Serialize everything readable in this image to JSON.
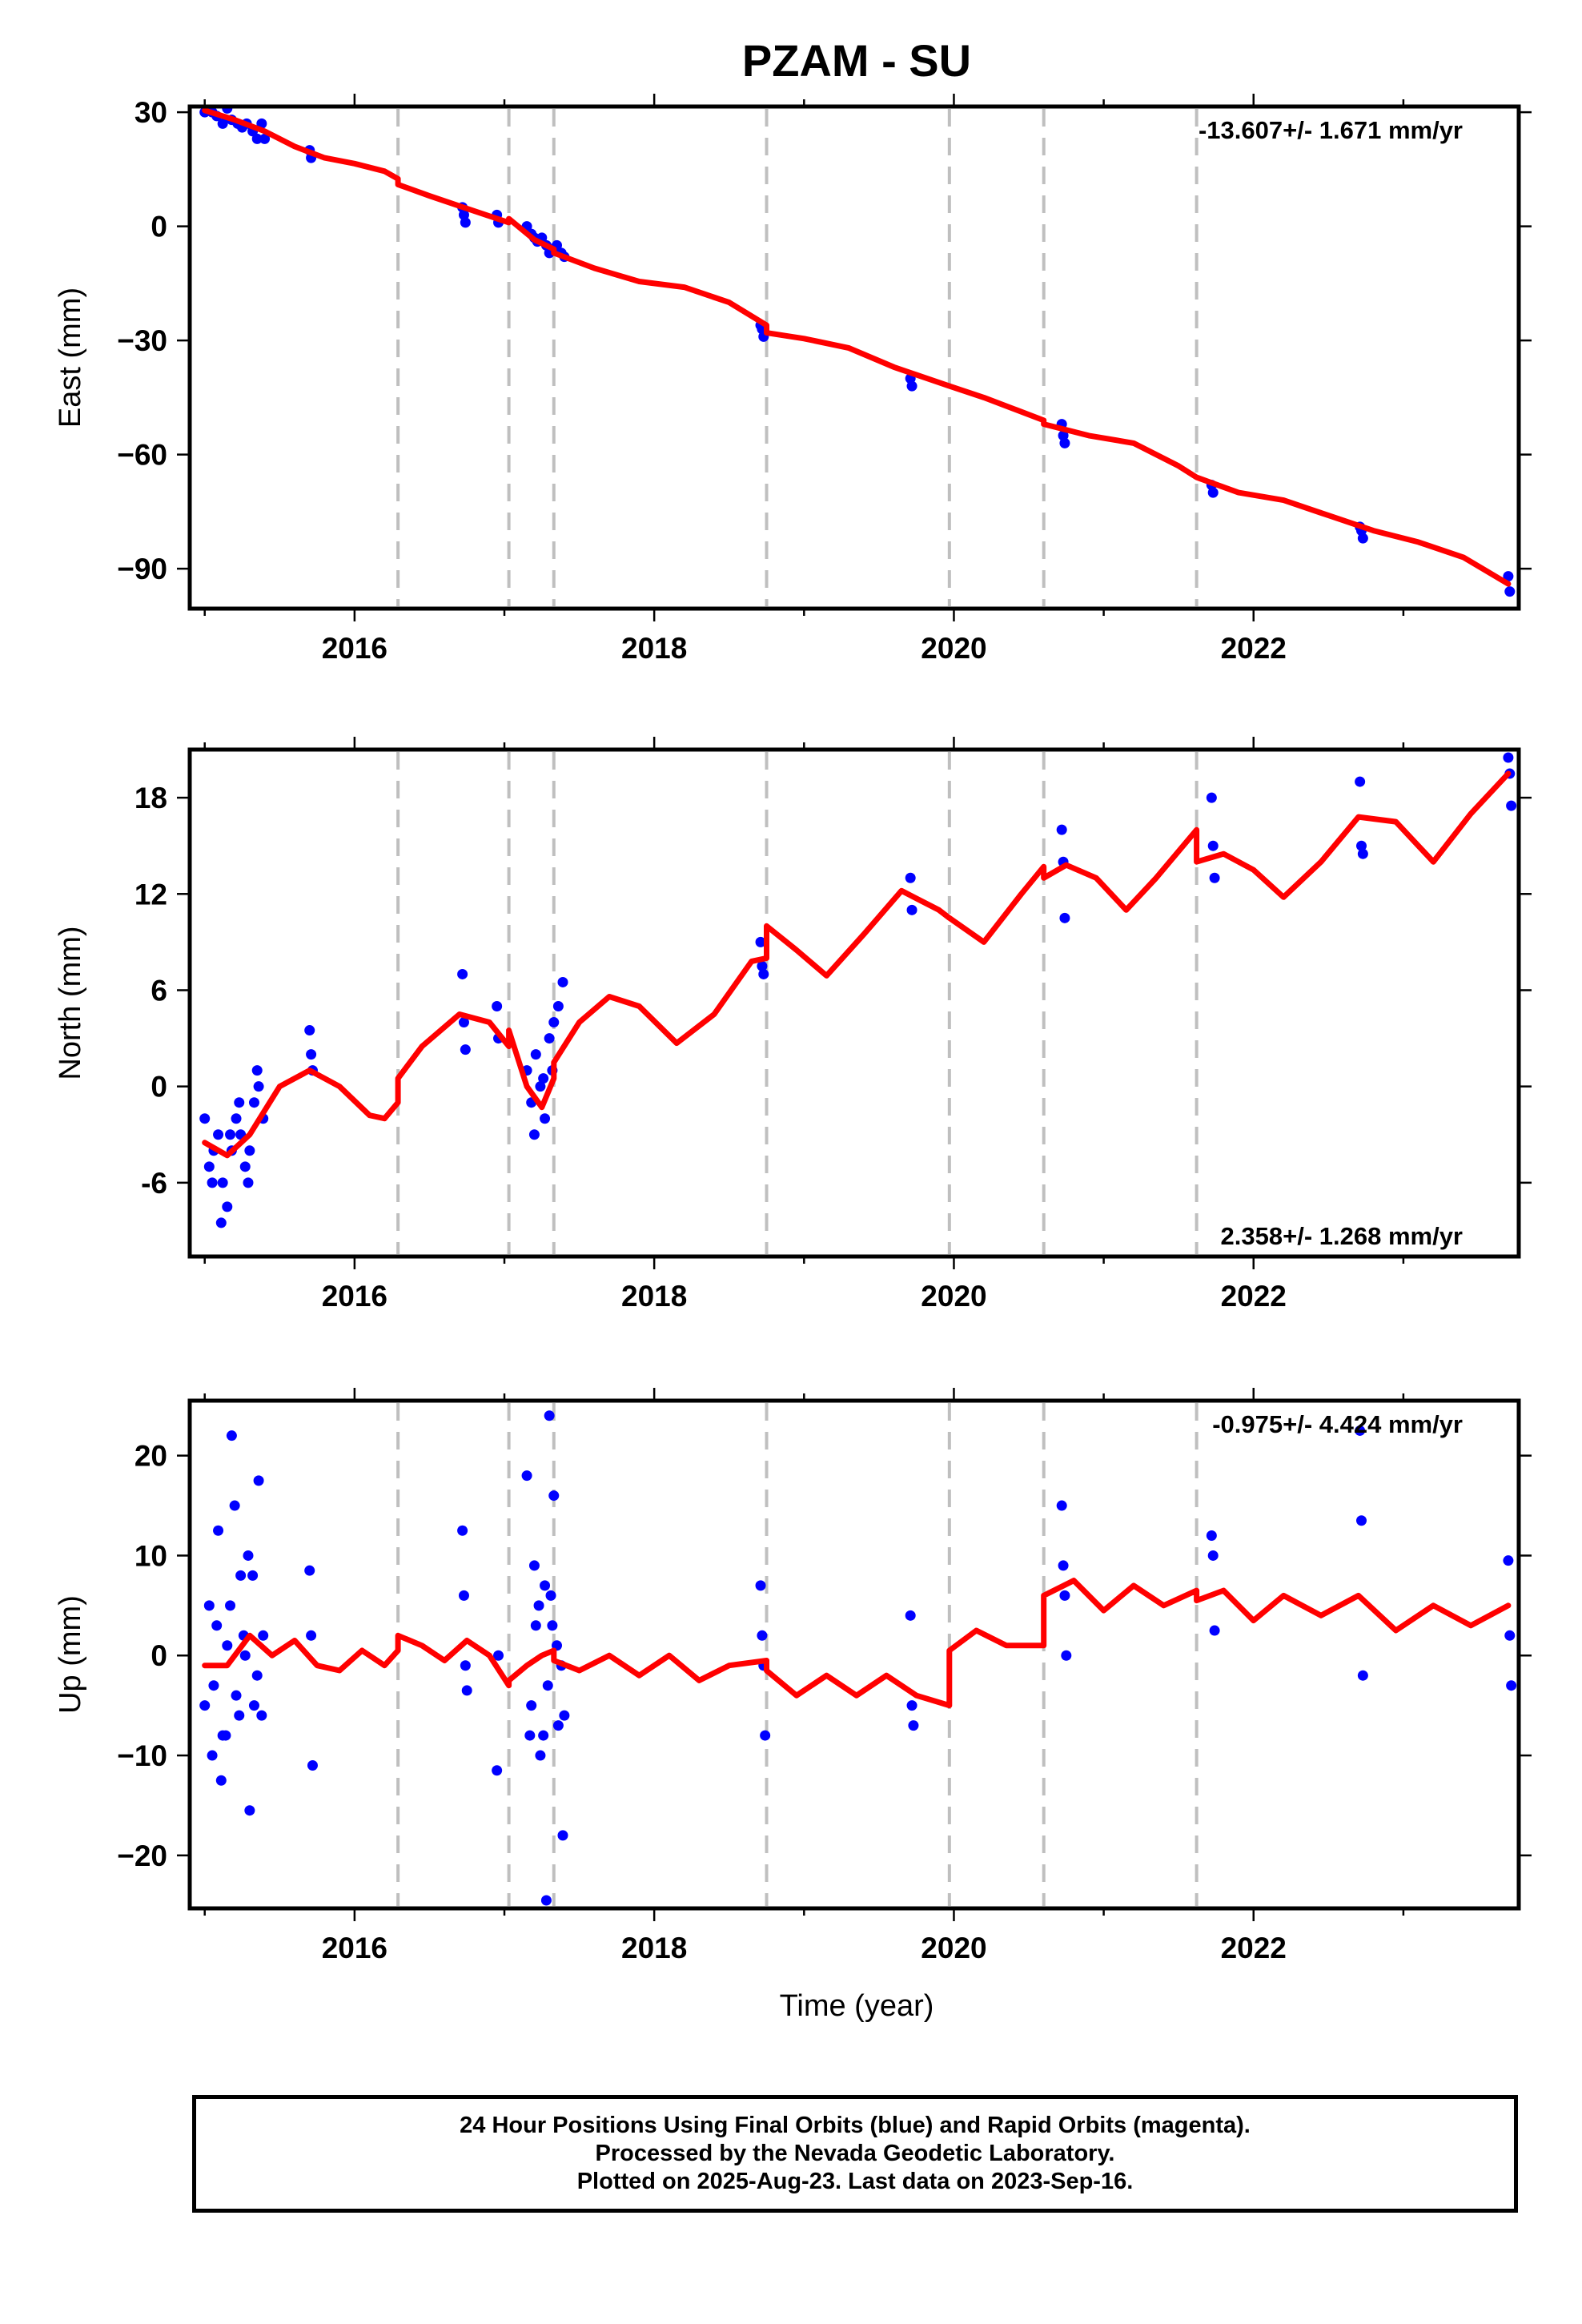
{
  "title": "PZAM - SU",
  "colors": {
    "data": "#0000ff",
    "model": "#ff0000",
    "breaks": "#bfbfbf",
    "axis": "#000000"
  },
  "xaxis": {
    "label": "Time (year)",
    "range": [
      2014.9,
      2023.77
    ],
    "ticks": [
      "2016",
      "2018",
      "2020",
      "2022"
    ]
  },
  "breaks": [
    2016.29,
    2017.03,
    2017.33,
    2018.75,
    2019.97,
    2020.6,
    2021.62
  ],
  "footer": {
    "line1": "24 Hour Positions Using Final Orbits (blue) and Rapid Orbits (magenta).",
    "line2": "Processed by the Nevada Geodetic Laboratory.",
    "line3": "Plotted on 2025-Aug-23. Last data on 2023-Sep-16."
  },
  "chart_data": [
    {
      "type": "scatter",
      "component": "east",
      "ylabel": "East (mm)",
      "ylim": [
        -100.5,
        31.5
      ],
      "yticks": [
        "30",
        "0",
        "−30",
        "−60",
        "−90"
      ],
      "rate_label": "-13.607+/- 1.671 mm/yr",
      "rate_position": "top-right",
      "series": [
        {
          "name": "data",
          "x": [
            2015.0,
            2015.05,
            2015.08,
            2015.12,
            2015.15,
            2015.18,
            2015.22,
            2015.25,
            2015.28,
            2015.32,
            2015.35,
            2015.38,
            2015.4,
            2015.7,
            2015.71,
            2016.72,
            2016.73,
            2016.74,
            2016.95,
            2016.96,
            2017.15,
            2017.18,
            2017.2,
            2017.22,
            2017.25,
            2017.28,
            2017.3,
            2017.32,
            2017.35,
            2017.38,
            2017.4,
            2018.71,
            2018.72,
            2018.73,
            2019.71,
            2019.72,
            2020.72,
            2020.73,
            2020.74,
            2021.72,
            2021.73,
            2022.71,
            2022.72,
            2022.73,
            2023.7,
            2023.71
          ],
          "y": [
            30,
            30,
            29,
            27,
            31,
            28,
            27,
            26,
            27,
            25,
            23,
            27,
            23,
            20,
            18,
            5,
            3,
            1,
            3,
            1,
            0,
            -2,
            -3,
            -4,
            -3,
            -5,
            -7,
            -6,
            -5,
            -7,
            -8,
            -26,
            -27,
            -29,
            -40,
            -42,
            -52,
            -55,
            -57,
            -68,
            -70,
            -79,
            -80,
            -82,
            -92,
            -96
          ]
        },
        {
          "name": "model",
          "x": [
            2015.0,
            2015.2,
            2015.4,
            2015.6,
            2015.8,
            2016.0,
            2016.2,
            2016.29,
            2016.29,
            2016.5,
            2016.8,
            2017.03,
            2017.03,
            2017.2,
            2017.33,
            2017.33,
            2017.6,
            2017.9,
            2018.2,
            2018.5,
            2018.75,
            2018.75,
            2019.0,
            2019.3,
            2019.6,
            2019.97,
            2019.97,
            2020.2,
            2020.4,
            2020.6,
            2020.6,
            2020.9,
            2021.2,
            2021.5,
            2021.62,
            2021.62,
            2021.9,
            2022.2,
            2022.5,
            2022.8,
            2023.1,
            2023.4,
            2023.7
          ],
          "y": [
            30.5,
            28,
            25,
            21,
            18,
            16.5,
            14.5,
            12.5,
            11,
            8,
            4,
            1,
            2,
            -3.5,
            -6,
            -7,
            -11,
            -14.5,
            -16,
            -20,
            -26,
            -28,
            -29.5,
            -32,
            -37,
            -42,
            -42,
            -45,
            -48,
            -51,
            -52,
            -55,
            -57,
            -63,
            -66,
            -66,
            -70,
            -72,
            -76,
            -80,
            -83,
            -87,
            -94
          ]
        }
      ]
    },
    {
      "type": "scatter",
      "component": "north",
      "ylabel": "North (mm)",
      "ylim": [
        -10.6,
        21.0
      ],
      "yticks": [
        "18",
        "12",
        "6",
        "0",
        "-6"
      ],
      "rate_label": "2.358+/- 1.268 mm/yr",
      "rate_position": "bottom-right",
      "series": [
        {
          "name": "data",
          "x": [
            2015.0,
            2015.03,
            2015.06,
            2015.09,
            2015.12,
            2015.15,
            2015.18,
            2015.21,
            2015.24,
            2015.27,
            2015.3,
            2015.33,
            2015.36,
            2015.39,
            2015.05,
            2015.11,
            2015.17,
            2015.23,
            2015.29,
            2015.35,
            2015.7,
            2015.71,
            2015.72,
            2016.72,
            2016.73,
            2016.74,
            2016.95,
            2016.96,
            2017.15,
            2017.18,
            2017.21,
            2017.24,
            2017.27,
            2017.3,
            2017.33,
            2017.36,
            2017.39,
            2017.2,
            2017.26,
            2017.32,
            2018.71,
            2018.72,
            2018.73,
            2019.71,
            2019.72,
            2020.72,
            2020.73,
            2020.74,
            2021.72,
            2021.73,
            2021.74,
            2022.71,
            2022.72,
            2022.73,
            2023.7,
            2023.71,
            2023.72
          ],
          "y": [
            -2,
            -5,
            -4,
            -3,
            -6,
            -7.5,
            -4,
            -2,
            -3,
            -5,
            -4,
            -1,
            0,
            -2,
            -6,
            -8.5,
            -3,
            -1,
            -6,
            1,
            3.5,
            2,
            1,
            7,
            4,
            2.3,
            5,
            3,
            1,
            -1,
            2,
            0,
            -2,
            3,
            4,
            5,
            6.5,
            -3,
            0.5,
            1,
            9,
            7.5,
            7,
            13,
            11,
            16,
            14,
            10.5,
            18,
            15,
            13,
            19,
            15,
            14.5,
            20.5,
            19.5,
            17.5
          ]
        },
        {
          "name": "model",
          "x": [
            2015.0,
            2015.15,
            2015.3,
            2015.5,
            2015.7,
            2015.9,
            2016.1,
            2016.2,
            2016.29,
            2016.29,
            2016.45,
            2016.7,
            2016.9,
            2017.03,
            2017.03,
            2017.15,
            2017.25,
            2017.33,
            2017.33,
            2017.5,
            2017.7,
            2017.9,
            2018.15,
            2018.4,
            2018.65,
            2018.75,
            2018.75,
            2018.95,
            2019.15,
            2019.4,
            2019.65,
            2019.9,
            2019.97,
            2019.97,
            2020.2,
            2020.45,
            2020.6,
            2020.6,
            2020.75,
            2020.95,
            2021.15,
            2021.35,
            2021.62,
            2021.62,
            2021.8,
            2022.0,
            2022.2,
            2022.45,
            2022.7,
            2022.95,
            2023.2,
            2023.45,
            2023.7
          ],
          "y": [
            -3.5,
            -4.3,
            -3,
            0,
            1,
            0,
            -1.8,
            -2,
            -1,
            0.5,
            2.5,
            4.5,
            4,
            2.5,
            3.5,
            0,
            -1.3,
            0.5,
            1.5,
            4,
            5.6,
            5,
            2.7,
            4.5,
            7.8,
            8,
            10,
            8.5,
            6.9,
            9.5,
            12.2,
            11,
            10.5,
            10.5,
            9,
            12,
            13.7,
            13,
            13.8,
            13,
            11,
            13,
            16,
            14,
            14.5,
            13.5,
            11.8,
            14,
            16.8,
            16.5,
            14,
            17,
            19.5
          ]
        }
      ]
    },
    {
      "type": "scatter",
      "component": "up",
      "ylabel": "Up (mm)",
      "ylim": [
        -25.3,
        25.5
      ],
      "yticks": [
        "20",
        "10",
        "0",
        "−10",
        "−20"
      ],
      "rate_label": "-0.975+/- 4.424 mm/yr",
      "rate_position": "top-right",
      "series": [
        {
          "name": "data",
          "x": [
            2015.0,
            2015.03,
            2015.06,
            2015.09,
            2015.12,
            2015.15,
            2015.18,
            2015.21,
            2015.24,
            2015.27,
            2015.3,
            2015.33,
            2015.36,
            2015.39,
            2015.05,
            2015.11,
            2015.17,
            2015.23,
            2015.29,
            2015.35,
            2015.08,
            2015.14,
            2015.2,
            2015.26,
            2015.32,
            2015.38,
            2015.7,
            2015.71,
            2015.72,
            2016.72,
            2016.73,
            2016.74,
            2016.75,
            2016.95,
            2016.96,
            2017.15,
            2017.18,
            2017.21,
            2017.24,
            2017.27,
            2017.3,
            2017.33,
            2017.36,
            2017.39,
            2017.17,
            2017.23,
            2017.29,
            2017.35,
            2017.2,
            2017.26,
            2017.32,
            2017.38,
            2017.28,
            2017.31,
            2017.4,
            2018.71,
            2018.72,
            2018.73,
            2018.74,
            2019.71,
            2019.72,
            2019.73,
            2020.72,
            2020.73,
            2020.74,
            2020.75,
            2021.72,
            2021.73,
            2021.74,
            2022.71,
            2022.72,
            2022.73,
            2023.7,
            2023.71,
            2023.72
          ],
          "y": [
            -5,
            5,
            -3,
            12.5,
            -8,
            1,
            22,
            -4,
            8,
            0,
            -15.5,
            -5,
            17.5,
            2,
            -10,
            -12.5,
            5,
            -6,
            10,
            -2,
            3,
            -8,
            15,
            2,
            8,
            -6,
            8.5,
            2,
            -11,
            12.5,
            6,
            -1,
            -3.5,
            -11.5,
            0,
            18,
            -5,
            3,
            -10,
            7,
            24,
            16,
            -7,
            -18,
            -8,
            5,
            -3,
            1,
            9,
            -8,
            3,
            -1,
            -24.5,
            6,
            -6,
            7,
            2,
            -1,
            -8,
            4,
            -5,
            -7,
            15,
            9,
            6,
            0,
            12,
            10,
            2.5,
            22.5,
            13.5,
            -2,
            9.5,
            2,
            -3
          ]
        },
        {
          "name": "model",
          "x": [
            2015.0,
            2015.15,
            2015.3,
            2015.45,
            2015.6,
            2015.75,
            2015.9,
            2016.05,
            2016.2,
            2016.29,
            2016.29,
            2016.45,
            2016.6,
            2016.75,
            2016.9,
            2017.03,
            2017.03,
            2017.15,
            2017.25,
            2017.33,
            2017.33,
            2017.5,
            2017.7,
            2017.9,
            2018.1,
            2018.3,
            2018.5,
            2018.75,
            2018.75,
            2018.95,
            2019.15,
            2019.35,
            2019.55,
            2019.75,
            2019.97,
            2019.97,
            2020.15,
            2020.35,
            2020.6,
            2020.6,
            2020.8,
            2021.0,
            2021.2,
            2021.4,
            2021.62,
            2021.62,
            2021.8,
            2022.0,
            2022.2,
            2022.45,
            2022.7,
            2022.95,
            2023.2,
            2023.45,
            2023.7
          ],
          "y": [
            -1,
            -1,
            2,
            0,
            1.5,
            -1,
            -1.5,
            0.5,
            -1,
            0.5,
            2,
            1,
            -0.5,
            1.5,
            0,
            -3,
            -2.5,
            -1,
            0,
            0.5,
            -0.5,
            -1.5,
            0,
            -2,
            0,
            -2.5,
            -1,
            -0.5,
            -1.5,
            -4,
            -2,
            -4,
            -2,
            -4,
            -5,
            0.5,
            2.5,
            1,
            1,
            6,
            7.5,
            4.5,
            7,
            5,
            6.5,
            5.5,
            6.5,
            3.5,
            6,
            4,
            6,
            2.5,
            5,
            3,
            5
          ]
        }
      ]
    }
  ]
}
